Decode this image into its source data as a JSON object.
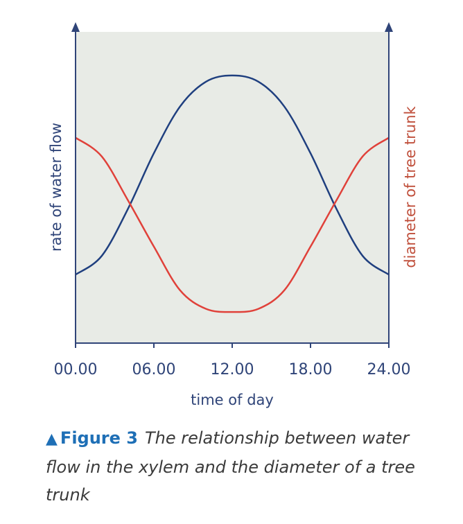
{
  "chart_data": {
    "type": "line",
    "x_ticks": [
      "00.00",
      "06.00",
      "12.00",
      "18.00",
      "24.00"
    ],
    "xlabel": "time of day",
    "ylabel_left": "rate of water flow",
    "ylabel_right": "diameter of tree trunk",
    "xlim": [
      0,
      24
    ],
    "ylim": [
      0,
      1
    ],
    "grid": false,
    "background": "#e8ebe6",
    "series": [
      {
        "name": "rate of water flow",
        "axis": "left",
        "color": "#1f3f7f",
        "x": [
          0,
          2,
          4,
          6,
          8,
          10,
          12,
          14,
          16,
          18,
          20,
          22,
          24
        ],
        "y": [
          0.22,
          0.28,
          0.43,
          0.61,
          0.76,
          0.84,
          0.86,
          0.84,
          0.76,
          0.61,
          0.43,
          0.28,
          0.22
        ]
      },
      {
        "name": "diameter of tree trunk",
        "axis": "right",
        "color": "#e0413a",
        "x": [
          0,
          2,
          4,
          6,
          8,
          10,
          12,
          14,
          16,
          18,
          20,
          22,
          24
        ],
        "y": [
          0.66,
          0.6,
          0.46,
          0.31,
          0.17,
          0.11,
          0.1,
          0.11,
          0.17,
          0.31,
          0.46,
          0.6,
          0.66
        ]
      }
    ]
  },
  "caption": {
    "marker": "▲",
    "label": "Figure 3",
    "text": "The relationship between water flow in the xylem and the diameter of a tree trunk"
  }
}
